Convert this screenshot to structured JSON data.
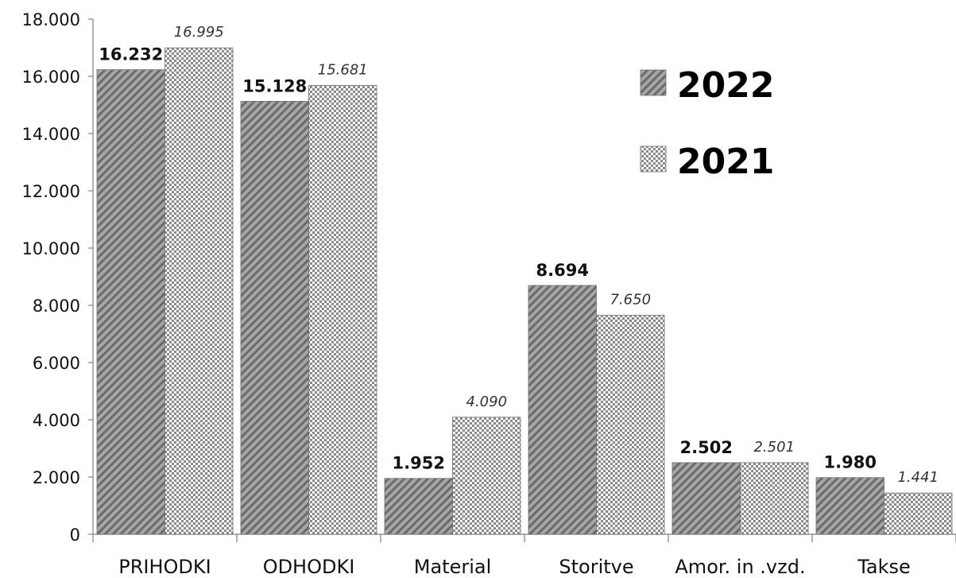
{
  "chart_data": {
    "type": "bar",
    "categories": [
      "PRIHODKI",
      "ODHODKI",
      "Material",
      "Storitve",
      "Amor. in .vzd.",
      "Takse"
    ],
    "series": [
      {
        "name": "2022",
        "values": [
          16232,
          15128,
          1952,
          8694,
          2502,
          1980
        ],
        "labels": [
          "16.232",
          "15.128",
          "1.952",
          "8.694",
          "2.502",
          "1.980"
        ],
        "color": "#8c8c8c",
        "pattern": "diagonal-hatch"
      },
      {
        "name": "2021",
        "values": [
          16995,
          15681,
          4090,
          7650,
          2501,
          1441
        ],
        "labels": [
          "16.995",
          "15.681",
          "4.090",
          "7.650",
          "2.501",
          "1.441"
        ],
        "color": "#8c8c8c",
        "pattern": "checker"
      }
    ],
    "yticks": [
      "0",
      "2.000",
      "4.000",
      "6.000",
      "8.000",
      "10.000",
      "12.000",
      "14.000",
      "16.000",
      "18.000"
    ],
    "ylim": [
      0,
      18000
    ],
    "grid": false,
    "legend_position": "top-right",
    "title": "",
    "xlabel": "",
    "ylabel": ""
  }
}
